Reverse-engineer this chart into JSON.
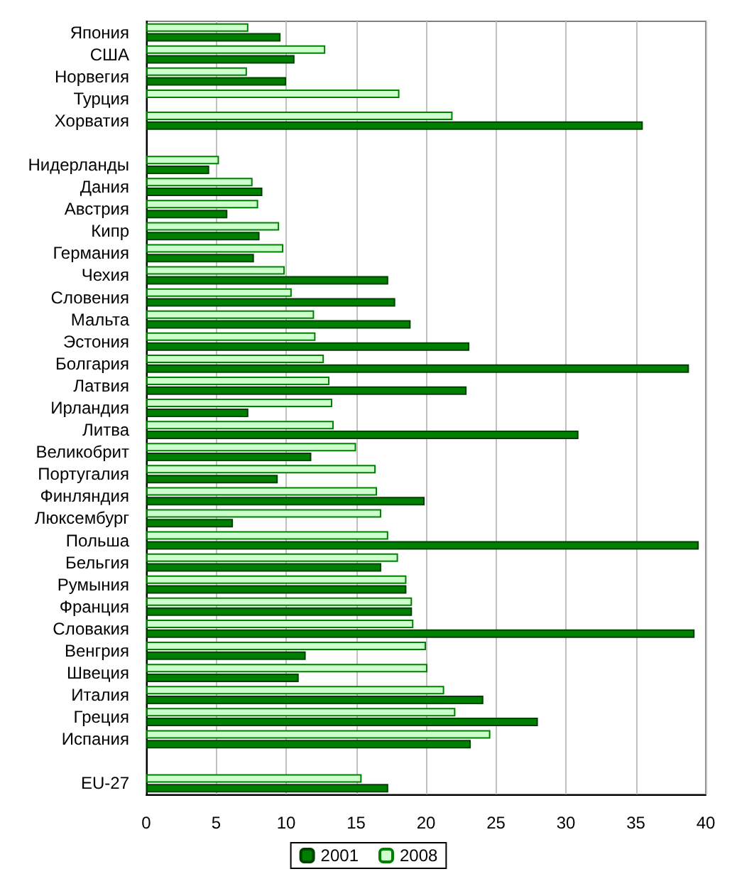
{
  "chart_data": {
    "type": "bar",
    "orientation": "horizontal",
    "categories": [
      "Япония",
      "США",
      "Норвегия",
      "Турция",
      "Хорватия",
      null,
      "Нидерланды",
      "Дания",
      "Австрия",
      "Кипр",
      "Германия",
      "Чехия",
      "Словения",
      "Мальта",
      "Эстония",
      "Болгария",
      "Латвия",
      "Ирландия",
      "Литва",
      "Великобрит",
      "Португалия",
      "Финляндия",
      "Люксембург",
      "Польша",
      "Бельгия",
      "Румыния",
      "Франция",
      "Словакия",
      "Венгрия",
      "Швеция",
      "Италия",
      "Греция",
      "Испания",
      null,
      "EU-27"
    ],
    "series": [
      {
        "name": "2008",
        "color": "#ccffcc",
        "values": [
          7.3,
          12.8,
          7.2,
          18.1,
          21.9,
          null,
          5.2,
          7.6,
          8.0,
          9.5,
          9.8,
          9.9,
          10.4,
          12.0,
          12.1,
          12.7,
          13.1,
          13.3,
          13.4,
          15.0,
          16.4,
          16.5,
          16.8,
          17.3,
          18.0,
          18.6,
          19.0,
          19.1,
          20.0,
          20.1,
          21.3,
          22.1,
          24.6,
          null,
          15.4
        ]
      },
      {
        "name": "2001",
        "color": "#008000",
        "values": [
          9.6,
          10.6,
          10.0,
          null,
          35.5,
          null,
          4.5,
          8.3,
          5.8,
          8.1,
          7.7,
          17.3,
          17.8,
          18.9,
          23.1,
          38.8,
          22.9,
          7.3,
          30.9,
          11.8,
          9.4,
          19.9,
          6.2,
          39.5,
          16.8,
          18.6,
          19.0,
          39.2,
          11.4,
          10.9,
          24.1,
          28.0,
          23.2,
          null,
          17.3
        ]
      }
    ],
    "xlim": [
      0,
      40
    ],
    "xticks": [
      0,
      5,
      10,
      15,
      20,
      25,
      30,
      35,
      40
    ],
    "grid": "x",
    "legend": "bottom"
  }
}
